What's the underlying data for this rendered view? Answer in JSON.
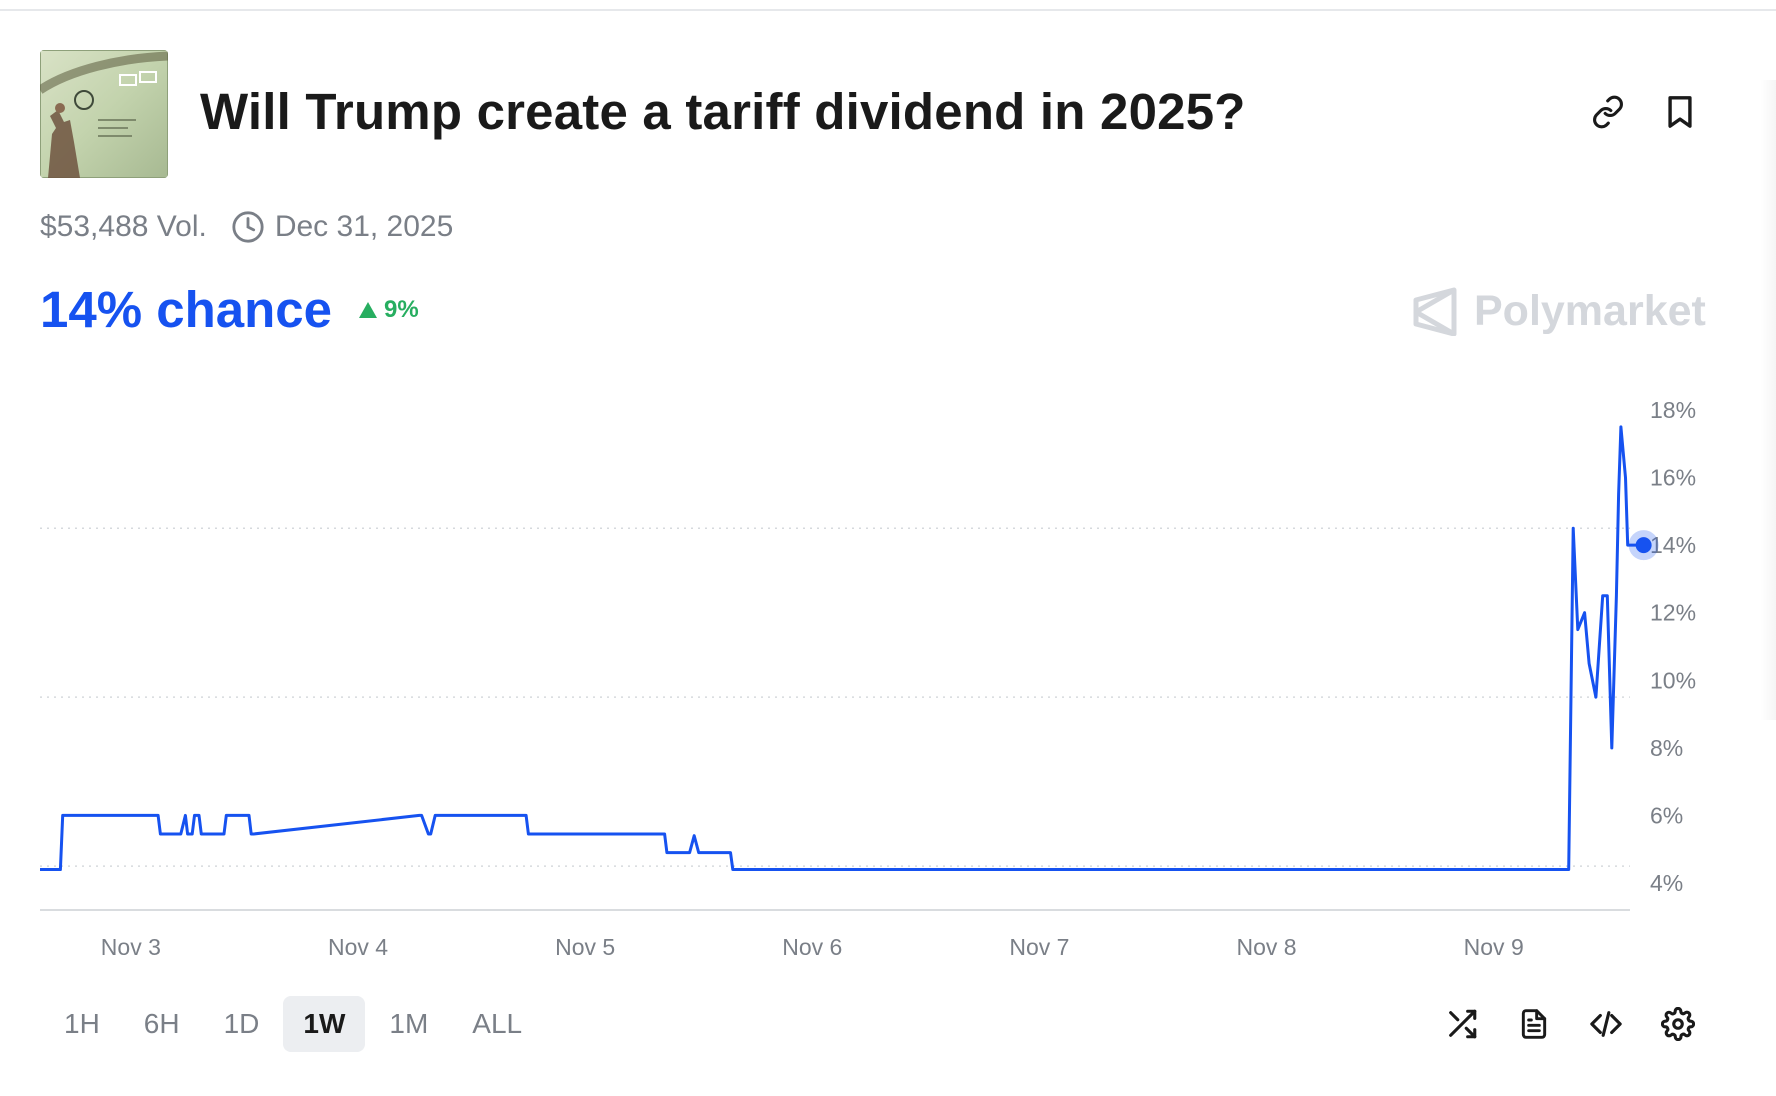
{
  "market": {
    "title": "Will Trump create a tariff dividend in 2025?",
    "volume": "$53,488 Vol.",
    "end_date": "Dec 31, 2025",
    "chance": "14% chance",
    "delta": "9%",
    "delta_direction": "up",
    "brand": "Polymarket"
  },
  "colors": {
    "accent": "#1652f0",
    "positive": "#27ae60",
    "muted": "#7a7f87",
    "brand_gray": "#d4d7dc"
  },
  "icons": {
    "link": "link-icon",
    "bookmark": "bookmark-icon",
    "clock": "clock-icon",
    "delta": "triangle-up-icon",
    "brand": "polymarket-logo-icon",
    "shuffle": "shuffle-icon",
    "document": "document-icon",
    "embed": "code-icon",
    "settings": "gear-icon"
  },
  "time_ranges": [
    "1H",
    "6H",
    "1D",
    "1W",
    "1M",
    "ALL"
  ],
  "active_range": "1W",
  "chart_data": {
    "type": "line",
    "series": [
      {
        "x": [
          2.6,
          2.69,
          2.7,
          3.12,
          3.13,
          3.22,
          3.24,
          3.25,
          3.27,
          3.28,
          3.3,
          3.31,
          3.32,
          3.41,
          3.42,
          3.52,
          3.53,
          3.54,
          4.27,
          4.28,
          4.31,
          4.32,
          4.34,
          4.74,
          4.75,
          5.35,
          5.36,
          5.46,
          5.48,
          5.5,
          5.52,
          5.64,
          5.65,
          9.33,
          9.35,
          9.37,
          9.4,
          9.42,
          9.45,
          9.48,
          9.5,
          9.52,
          9.54,
          9.55,
          9.56,
          9.58,
          9.59,
          9.61,
          9.63,
          9.66
        ],
        "y": [
          4.4,
          4.4,
          6.0,
          6.0,
          5.45,
          5.45,
          6.0,
          5.45,
          5.45,
          6.0,
          6.0,
          5.45,
          5.45,
          5.45,
          6.0,
          6.0,
          5.45,
          5.45,
          6.0,
          6.0,
          5.45,
          5.45,
          6.0,
          6.0,
          5.45,
          5.45,
          4.9,
          4.9,
          5.4,
          4.9,
          4.9,
          4.9,
          4.4,
          4.4,
          14.5,
          11.5,
          12.0,
          10.5,
          9.5,
          12.5,
          12.5,
          8.0,
          12.5,
          15.5,
          17.5,
          16.0,
          14.0,
          14.0,
          14.0,
          14.0
        ]
      }
    ],
    "x_tick_labels": [
      "Nov 3",
      "Nov 4",
      "Nov 5",
      "Nov 6",
      "Nov 7",
      "Nov 8",
      "Nov 9"
    ],
    "y_tick_labels": [
      "18%",
      "16%",
      "14%",
      "12%",
      "10%",
      "8%",
      "6%",
      "4%"
    ],
    "ylim": [
      4,
      18
    ],
    "xlim": [
      2.6,
      9.6
    ],
    "current_value": 14,
    "gridlines": [
      4.5,
      9.5,
      14.5
    ],
    "grid": "horizontal dotted",
    "y_axis_position": "right",
    "line_color": "#1652f0"
  }
}
